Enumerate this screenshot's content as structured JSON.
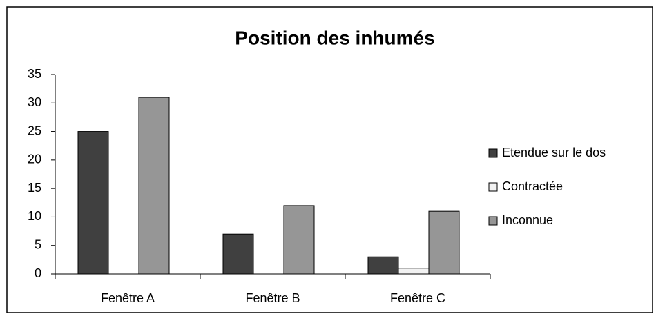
{
  "chart_data": {
    "type": "bar",
    "title": "Position des inhumés",
    "categories": [
      "Fenêtre A",
      "Fenêtre B",
      "Fenêtre C"
    ],
    "series": [
      {
        "name": "Etendue sur le dos",
        "color": "#404040",
        "values": [
          25,
          7,
          3
        ]
      },
      {
        "name": "Contractée",
        "color": "#f2f2f2",
        "values": [
          0,
          0,
          1
        ]
      },
      {
        "name": "Inconnue",
        "color": "#969696",
        "values": [
          31,
          12,
          11
        ]
      }
    ],
    "ylim": [
      0,
      35
    ],
    "yticks": [
      0,
      5,
      10,
      15,
      20,
      25,
      30,
      35
    ],
    "grid": false,
    "legend": "right"
  }
}
